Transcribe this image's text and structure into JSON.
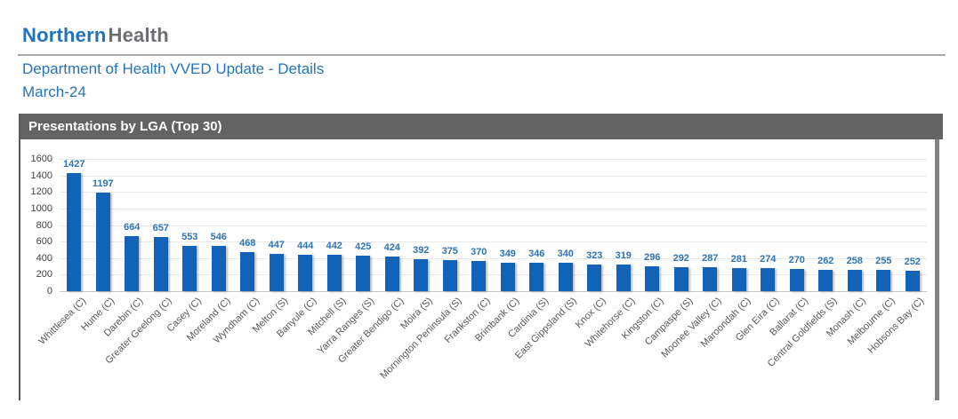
{
  "header": {
    "logo_primary": "Northern",
    "logo_secondary": "Health",
    "report_title": "Department of Health VVED Update - Details",
    "period": "March-24"
  },
  "panel": {
    "title": "Presentations by LGA (Top 30)"
  },
  "chart_data": {
    "type": "bar",
    "title": "Presentations by LGA (Top 30)",
    "categories": [
      "Whittlesea (C)",
      "Hume (C)",
      "Darebin (C)",
      "Greater Geelong (C)",
      "Casey (C)",
      "Moreland (C)",
      "Wyndham (C)",
      "Melton (S)",
      "Banyule (C)",
      "Mitchell (S)",
      "Yarra Ranges (S)",
      "Greater Bendigo (C)",
      "Moira (S)",
      "Mornington Peninsula (S)",
      "Frankston (C)",
      "Brimbank (C)",
      "Cardinia (S)",
      "East Gippsland (S)",
      "Knox (C)",
      "Whitehorse (C)",
      "Kingston (C)",
      "Campaspe (S)",
      "Moonee Valley (C)",
      "Maroondah (C)",
      "Glen Eira (C)",
      "Ballarat (C)",
      "Central Goldfields (S)",
      "Monash (C)",
      "Melbourne (C)",
      "Hobsons Bay (C)"
    ],
    "values": [
      1427,
      1197,
      664,
      657,
      553,
      546,
      468,
      447,
      444,
      442,
      425,
      424,
      392,
      375,
      370,
      349,
      346,
      340,
      323,
      319,
      296,
      292,
      287,
      281,
      274,
      270,
      262,
      258,
      255,
      252
    ],
    "xlabel": "",
    "ylabel": "",
    "ylim": [
      0,
      1600
    ],
    "ytick_step": 200,
    "grid": true,
    "legend_position": "none",
    "bar_color": "#1262b8",
    "value_label_color": "#2e74b5"
  }
}
